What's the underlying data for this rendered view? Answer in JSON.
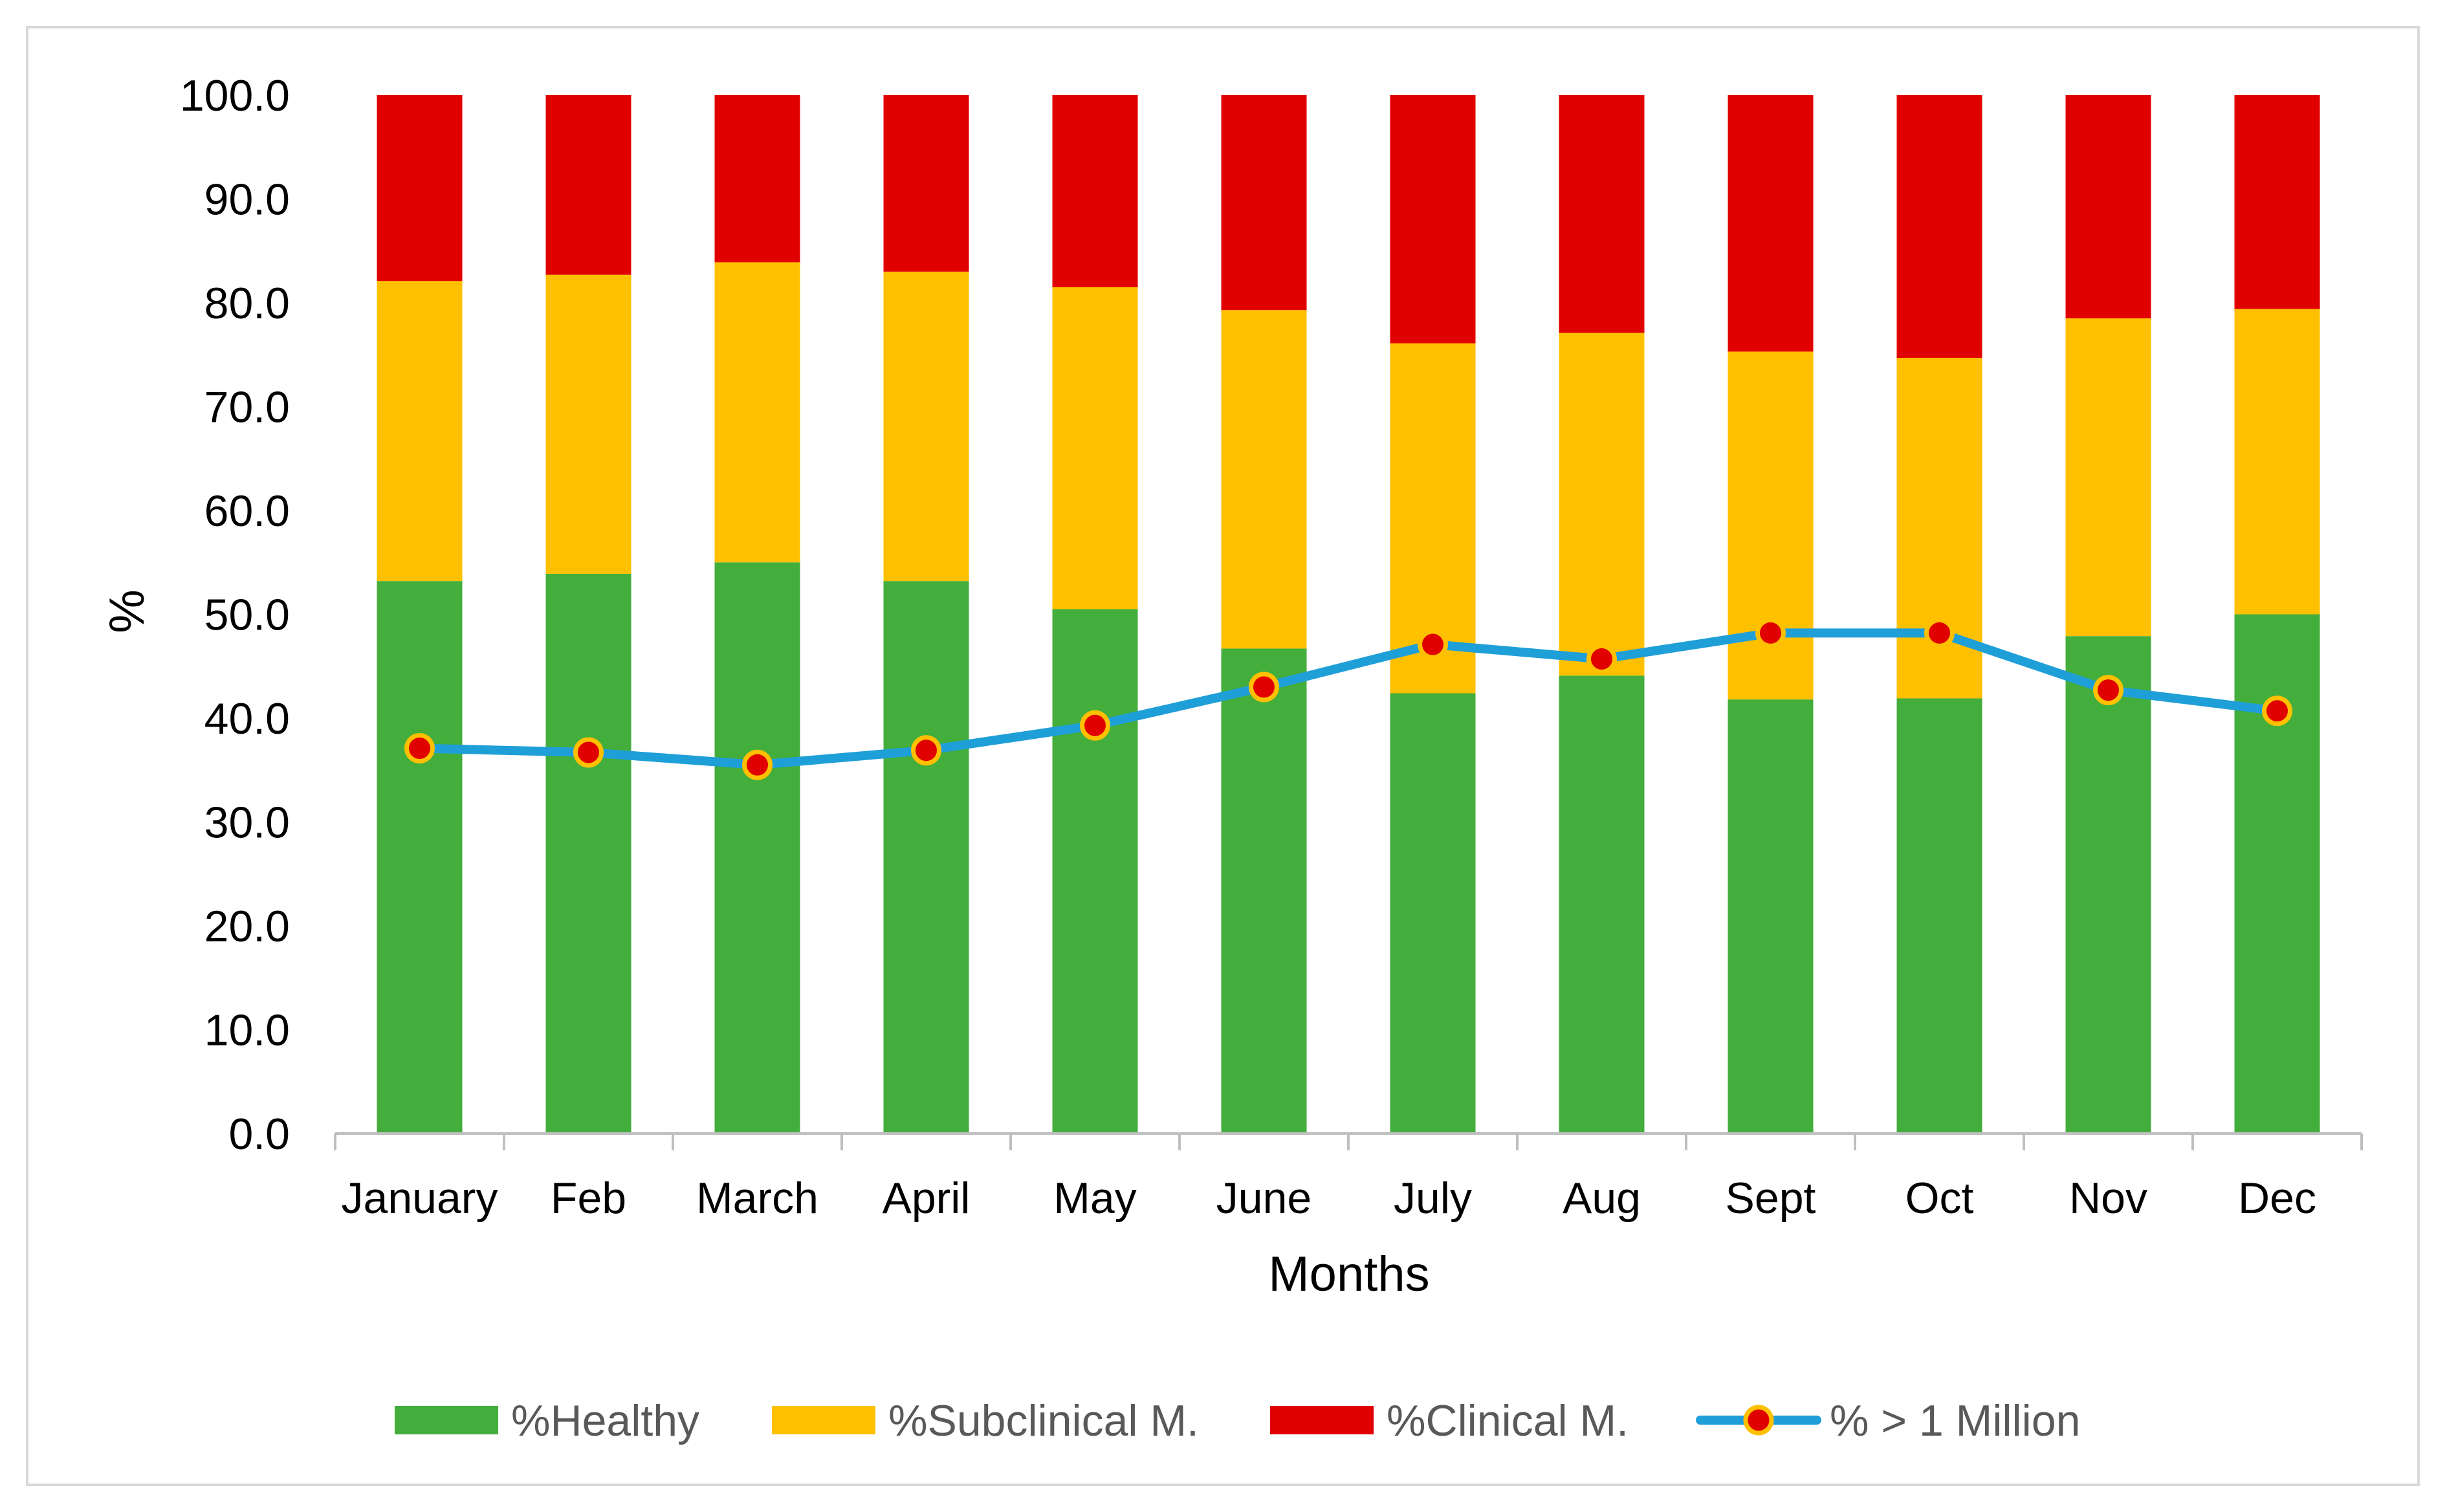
{
  "chart_data": {
    "type": "bar",
    "stacked": true,
    "title": "",
    "xlabel": "Months",
    "ylabel": "%",
    "ylim": [
      0,
      100
    ],
    "yticks": [
      "0.0",
      "10.0",
      "20.0",
      "30.0",
      "40.0",
      "50.0",
      "60.0",
      "70.0",
      "80.0",
      "90.0",
      "100.0"
    ],
    "categories": [
      "January",
      "Feb",
      "March",
      "April",
      "May",
      "June",
      "July",
      "Aug",
      "Sept",
      "Oct",
      "Nov",
      "Dec"
    ],
    "series": [
      {
        "name": "%Healthy",
        "kind": "bar",
        "color": "#43ae3c",
        "values": [
          53.2,
          53.9,
          55.0,
          53.2,
          50.5,
          46.7,
          42.4,
          44.1,
          41.8,
          41.9,
          47.9,
          50.0
        ]
      },
      {
        "name": "%Subclinical M.",
        "kind": "bar",
        "color": "#ffc000",
        "values": [
          28.9,
          28.8,
          28.9,
          29.8,
          31.0,
          32.6,
          33.7,
          33.0,
          33.5,
          32.8,
          30.6,
          29.4
        ]
      },
      {
        "name": "%Clinical M.",
        "kind": "bar",
        "color": "#e00000",
        "values": [
          17.9,
          17.3,
          16.1,
          17.0,
          18.5,
          20.7,
          23.9,
          22.9,
          24.7,
          25.3,
          21.5,
          20.6
        ]
      },
      {
        "name": "% > 1 Million",
        "kind": "line",
        "color": "#1f9fd8",
        "marker_fill": "#e00000",
        "marker_edge": "#ffc000",
        "values": [
          37.1,
          36.7,
          35.5,
          36.9,
          39.3,
          43.0,
          47.1,
          45.7,
          48.2,
          48.2,
          42.7,
          40.7
        ]
      }
    ],
    "grid": false,
    "legend": "bottom"
  }
}
